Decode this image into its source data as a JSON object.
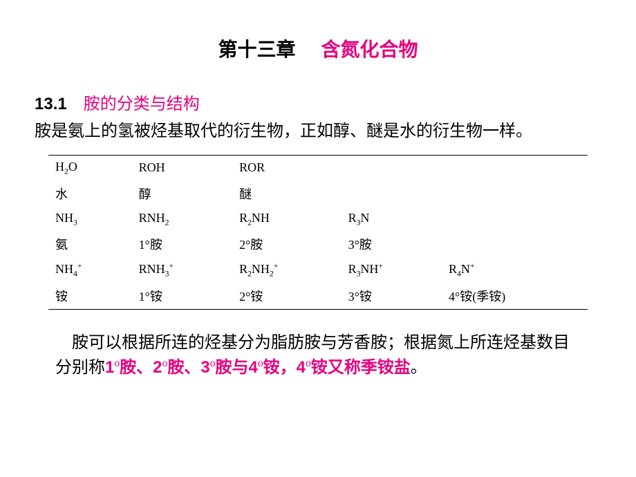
{
  "chapter": {
    "number": "第十三章",
    "title": "含氮化合物"
  },
  "section": {
    "number": "13.1",
    "title": "胺的分类与结构"
  },
  "intro": "胺是氨上的氢被烃基取代的衍生物，正如醇、醚是水的衍生物一样。",
  "table": {
    "rows": [
      [
        "H₂O",
        "ROH",
        "ROR",
        "",
        ""
      ],
      [
        "水",
        "醇",
        "醚",
        "",
        ""
      ],
      [
        "NH₃",
        "RNH₂",
        "R₂NH",
        "R₃N",
        ""
      ],
      [
        "氨",
        "1°胺",
        "2°胺",
        "3°胺",
        ""
      ],
      [
        "NH₄⁺",
        "RNH₃⁺",
        "R₂NH₂⁺",
        "R₃NH⁺",
        "R₄N⁺"
      ],
      [
        "铵",
        "1°铵",
        "2°铵",
        "3°铵",
        "4°铵(季铵)"
      ]
    ],
    "border_color": "#000000",
    "font_size": 18
  },
  "summary": {
    "pre": "胺可以根据所连的烃基分为脂肪胺与芳香胺；根据氮上所连烃基数目分别称",
    "hl1": "1",
    "hl1s": "o",
    "hl1t": "胺、",
    "hl2": "2",
    "hl2s": "o",
    "hl2t": "胺、",
    "hl3": "3",
    "hl3s": "o",
    "hl3t": "胺与",
    "hl4": "4",
    "hl4s": "o",
    "hl4t": "铵，",
    "hl5": "4",
    "hl5s": "o",
    "hl5t": "铵又称季铵盐",
    "end": "。"
  },
  "colors": {
    "accent": "#e4007f",
    "text": "#000000",
    "bg": "#ffffff"
  }
}
